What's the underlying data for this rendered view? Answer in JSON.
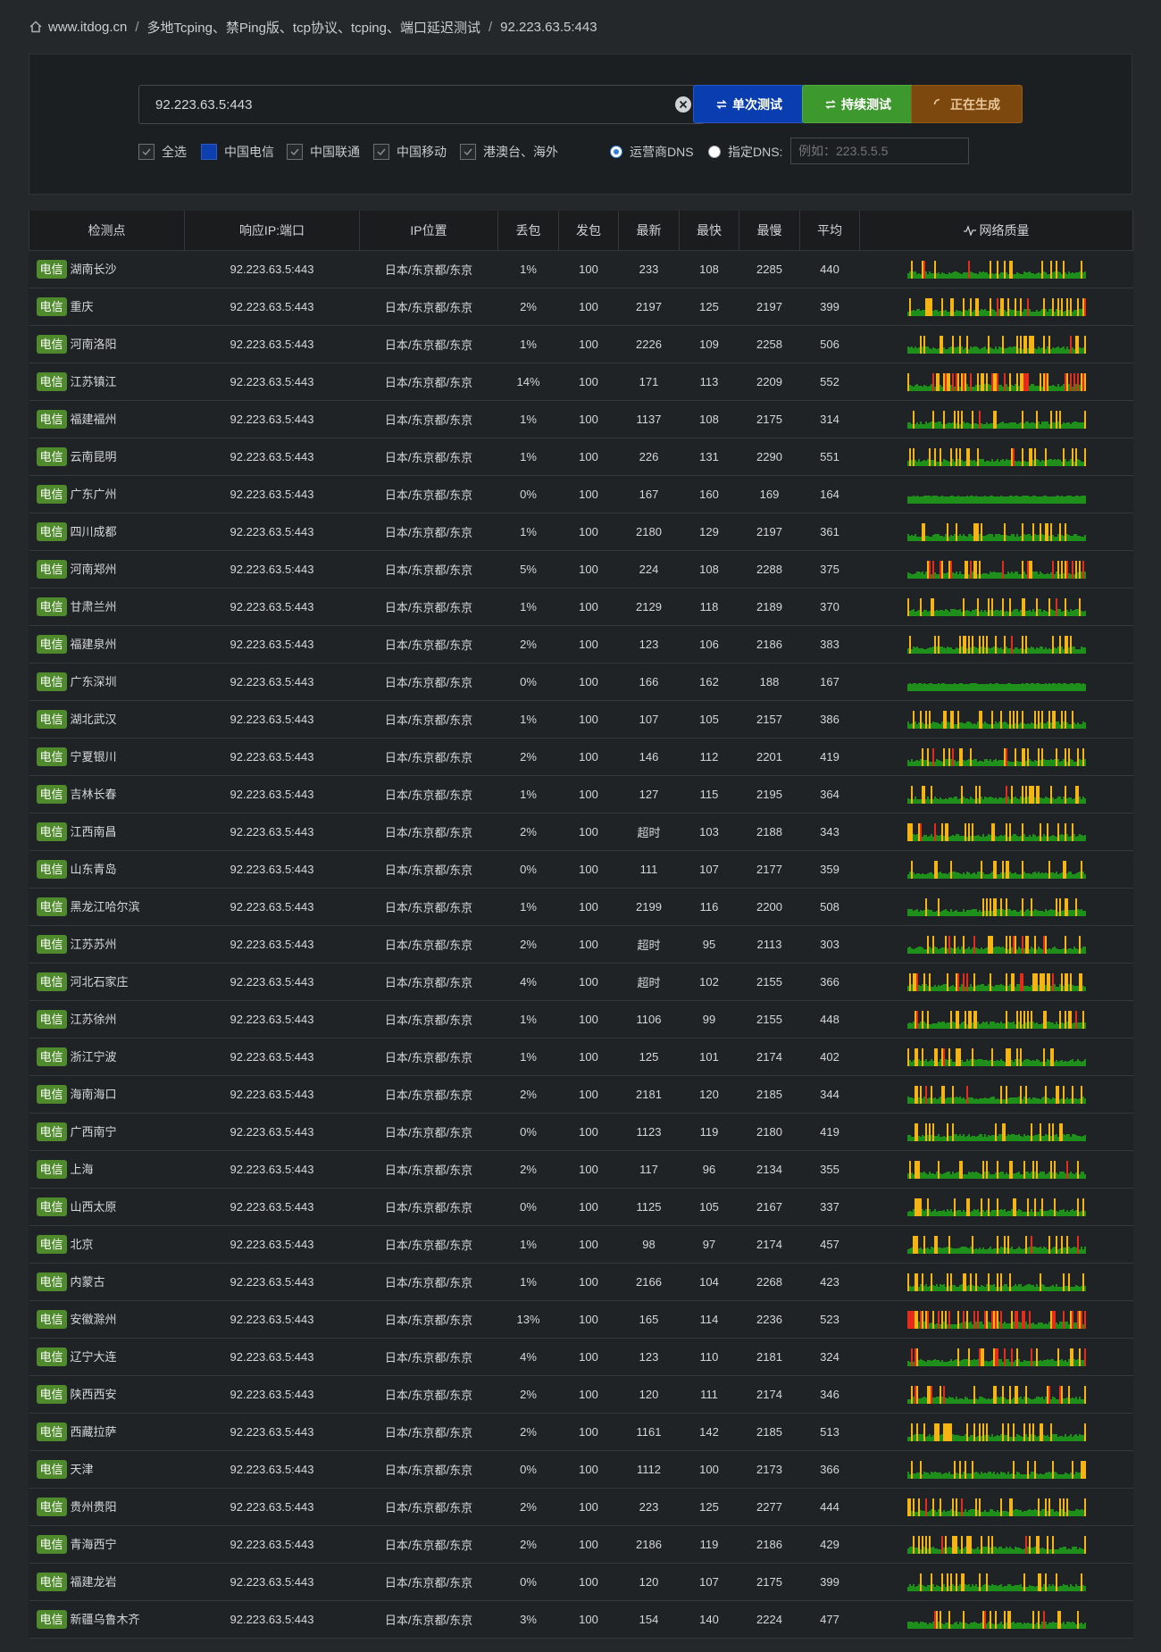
{
  "breadcrumb": {
    "site": "www.itdog.cn",
    "page": "多地Tcping、禁Ping版、tcp协议、tcping、端口延迟测试",
    "current": "92.223.63.5:443"
  },
  "form": {
    "target_value": "92.223.63.5:443",
    "btn_single": "单次测试",
    "btn_continuous": "持续测试",
    "btn_generating": "正在生成",
    "filters": [
      {
        "label": "全选",
        "checked": true
      },
      {
        "label": "中国电信",
        "checked": true
      },
      {
        "label": "中国联通",
        "checked": true
      },
      {
        "label": "中国移动",
        "checked": true
      },
      {
        "label": "港澳台、海外",
        "checked": true
      }
    ],
    "dns_isp": "运营商DNS",
    "dns_custom": "指定DNS:",
    "dns_placeholder": "例如：223.5.5.5"
  },
  "table": {
    "headers": [
      "检测点",
      "响应IP:端口",
      "IP位置",
      "丢包",
      "发包",
      "最新",
      "最快",
      "最慢",
      "平均",
      "网络质量"
    ],
    "isp_badge": "电信",
    "rows": [
      {
        "city": "湖南长沙",
        "ip": "92.223.63.5:443",
        "loc": "日本/东京都/东京",
        "loss": "1%",
        "sent": "100",
        "latest": "233",
        "fast": "108",
        "slow": "2285",
        "avg": "440"
      },
      {
        "city": "重庆",
        "ip": "92.223.63.5:443",
        "loc": "日本/东京都/东京",
        "loss": "2%",
        "sent": "100",
        "latest": "2197",
        "fast": "125",
        "slow": "2197",
        "avg": "399"
      },
      {
        "city": "河南洛阳",
        "ip": "92.223.63.5:443",
        "loc": "日本/东京都/东京",
        "loss": "1%",
        "sent": "100",
        "latest": "2226",
        "fast": "109",
        "slow": "2258",
        "avg": "506"
      },
      {
        "city": "江苏镇江",
        "ip": "92.223.63.5:443",
        "loc": "日本/东京都/东京",
        "loss": "14%",
        "sent": "100",
        "latest": "171",
        "fast": "113",
        "slow": "2209",
        "avg": "552"
      },
      {
        "city": "福建福州",
        "ip": "92.223.63.5:443",
        "loc": "日本/东京都/东京",
        "loss": "1%",
        "sent": "100",
        "latest": "1137",
        "fast": "108",
        "slow": "2175",
        "avg": "314"
      },
      {
        "city": "云南昆明",
        "ip": "92.223.63.5:443",
        "loc": "日本/东京都/东京",
        "loss": "1%",
        "sent": "100",
        "latest": "226",
        "fast": "131",
        "slow": "2290",
        "avg": "551"
      },
      {
        "city": "广东广州",
        "ip": "92.223.63.5:443",
        "loc": "日本/东京都/东京",
        "loss": "0%",
        "sent": "100",
        "latest": "167",
        "fast": "160",
        "slow": "169",
        "avg": "164"
      },
      {
        "city": "四川成都",
        "ip": "92.223.63.5:443",
        "loc": "日本/东京都/东京",
        "loss": "1%",
        "sent": "100",
        "latest": "2180",
        "fast": "129",
        "slow": "2197",
        "avg": "361"
      },
      {
        "city": "河南郑州",
        "ip": "92.223.63.5:443",
        "loc": "日本/东京都/东京",
        "loss": "5%",
        "sent": "100",
        "latest": "224",
        "fast": "108",
        "slow": "2288",
        "avg": "375"
      },
      {
        "city": "甘肃兰州",
        "ip": "92.223.63.5:443",
        "loc": "日本/东京都/东京",
        "loss": "1%",
        "sent": "100",
        "latest": "2129",
        "fast": "118",
        "slow": "2189",
        "avg": "370"
      },
      {
        "city": "福建泉州",
        "ip": "92.223.63.5:443",
        "loc": "日本/东京都/东京",
        "loss": "2%",
        "sent": "100",
        "latest": "123",
        "fast": "106",
        "slow": "2186",
        "avg": "383"
      },
      {
        "city": "广东深圳",
        "ip": "92.223.63.5:443",
        "loc": "日本/东京都/东京",
        "loss": "0%",
        "sent": "100",
        "latest": "166",
        "fast": "162",
        "slow": "188",
        "avg": "167"
      },
      {
        "city": "湖北武汉",
        "ip": "92.223.63.5:443",
        "loc": "日本/东京都/东京",
        "loss": "1%",
        "sent": "100",
        "latest": "107",
        "fast": "105",
        "slow": "2157",
        "avg": "386"
      },
      {
        "city": "宁夏银川",
        "ip": "92.223.63.5:443",
        "loc": "日本/东京都/东京",
        "loss": "2%",
        "sent": "100",
        "latest": "146",
        "fast": "112",
        "slow": "2201",
        "avg": "419"
      },
      {
        "city": "吉林长春",
        "ip": "92.223.63.5:443",
        "loc": "日本/东京都/东京",
        "loss": "1%",
        "sent": "100",
        "latest": "127",
        "fast": "115",
        "slow": "2195",
        "avg": "364"
      },
      {
        "city": "江西南昌",
        "ip": "92.223.63.5:443",
        "loc": "日本/东京都/东京",
        "loss": "2%",
        "sent": "100",
        "latest": "超时",
        "fast": "103",
        "slow": "2188",
        "avg": "343"
      },
      {
        "city": "山东青岛",
        "ip": "92.223.63.5:443",
        "loc": "日本/东京都/东京",
        "loss": "0%",
        "sent": "100",
        "latest": "111",
        "fast": "107",
        "slow": "2177",
        "avg": "359"
      },
      {
        "city": "黑龙江哈尔滨",
        "ip": "92.223.63.5:443",
        "loc": "日本/东京都/东京",
        "loss": "1%",
        "sent": "100",
        "latest": "2199",
        "fast": "116",
        "slow": "2200",
        "avg": "508"
      },
      {
        "city": "江苏苏州",
        "ip": "92.223.63.5:443",
        "loc": "日本/东京都/东京",
        "loss": "2%",
        "sent": "100",
        "latest": "超时",
        "fast": "95",
        "slow": "2113",
        "avg": "303"
      },
      {
        "city": "河北石家庄",
        "ip": "92.223.63.5:443",
        "loc": "日本/东京都/东京",
        "loss": "4%",
        "sent": "100",
        "latest": "超时",
        "fast": "102",
        "slow": "2155",
        "avg": "366"
      },
      {
        "city": "江苏徐州",
        "ip": "92.223.63.5:443",
        "loc": "日本/东京都/东京",
        "loss": "1%",
        "sent": "100",
        "latest": "1106",
        "fast": "99",
        "slow": "2155",
        "avg": "448"
      },
      {
        "city": "浙江宁波",
        "ip": "92.223.63.5:443",
        "loc": "日本/东京都/东京",
        "loss": "1%",
        "sent": "100",
        "latest": "125",
        "fast": "101",
        "slow": "2174",
        "avg": "402"
      },
      {
        "city": "海南海口",
        "ip": "92.223.63.5:443",
        "loc": "日本/东京都/东京",
        "loss": "2%",
        "sent": "100",
        "latest": "2181",
        "fast": "120",
        "slow": "2185",
        "avg": "344"
      },
      {
        "city": "广西南宁",
        "ip": "92.223.63.5:443",
        "loc": "日本/东京都/东京",
        "loss": "0%",
        "sent": "100",
        "latest": "1123",
        "fast": "119",
        "slow": "2180",
        "avg": "419"
      },
      {
        "city": "上海",
        "ip": "92.223.63.5:443",
        "loc": "日本/东京都/东京",
        "loss": "2%",
        "sent": "100",
        "latest": "117",
        "fast": "96",
        "slow": "2134",
        "avg": "355"
      },
      {
        "city": "山西太原",
        "ip": "92.223.63.5:443",
        "loc": "日本/东京都/东京",
        "loss": "0%",
        "sent": "100",
        "latest": "1125",
        "fast": "105",
        "slow": "2167",
        "avg": "337"
      },
      {
        "city": "北京",
        "ip": "92.223.63.5:443",
        "loc": "日本/东京都/东京",
        "loss": "1%",
        "sent": "100",
        "latest": "98",
        "fast": "97",
        "slow": "2174",
        "avg": "457"
      },
      {
        "city": "内蒙古",
        "ip": "92.223.63.5:443",
        "loc": "日本/东京都/东京",
        "loss": "1%",
        "sent": "100",
        "latest": "2166",
        "fast": "104",
        "slow": "2268",
        "avg": "423"
      },
      {
        "city": "安徽滁州",
        "ip": "92.223.63.5:443",
        "loc": "日本/东京都/东京",
        "loss": "13%",
        "sent": "100",
        "latest": "165",
        "fast": "114",
        "slow": "2236",
        "avg": "523"
      },
      {
        "city": "辽宁大连",
        "ip": "92.223.63.5:443",
        "loc": "日本/东京都/东京",
        "loss": "4%",
        "sent": "100",
        "latest": "123",
        "fast": "110",
        "slow": "2181",
        "avg": "324"
      },
      {
        "city": "陕西西安",
        "ip": "92.223.63.5:443",
        "loc": "日本/东京都/东京",
        "loss": "2%",
        "sent": "100",
        "latest": "120",
        "fast": "111",
        "slow": "2174",
        "avg": "346"
      },
      {
        "city": "西藏拉萨",
        "ip": "92.223.63.5:443",
        "loc": "日本/东京都/东京",
        "loss": "2%",
        "sent": "100",
        "latest": "1161",
        "fast": "142",
        "slow": "2185",
        "avg": "513"
      },
      {
        "city": "天津",
        "ip": "92.223.63.5:443",
        "loc": "日本/东京都/东京",
        "loss": "0%",
        "sent": "100",
        "latest": "1112",
        "fast": "100",
        "slow": "2173",
        "avg": "366"
      },
      {
        "city": "贵州贵阳",
        "ip": "92.223.63.5:443",
        "loc": "日本/东京都/东京",
        "loss": "2%",
        "sent": "100",
        "latest": "223",
        "fast": "125",
        "slow": "2277",
        "avg": "444"
      },
      {
        "city": "青海西宁",
        "ip": "92.223.63.5:443",
        "loc": "日本/东京都/东京",
        "loss": "2%",
        "sent": "100",
        "latest": "2186",
        "fast": "119",
        "slow": "2186",
        "avg": "429"
      },
      {
        "city": "福建龙岩",
        "ip": "92.223.63.5:443",
        "loc": "日本/东京都/东京",
        "loss": "0%",
        "sent": "100",
        "latest": "120",
        "fast": "107",
        "slow": "2175",
        "avg": "399"
      },
      {
        "city": "新疆乌鲁木齐",
        "ip": "92.223.63.5:443",
        "loc": "日本/东京都/东京",
        "loss": "3%",
        "sent": "100",
        "latest": "154",
        "fast": "140",
        "slow": "2224",
        "avg": "477"
      }
    ]
  },
  "colors": {
    "good": "#1f8f1b",
    "slow": "#f5b414",
    "lost": "#e52b1a",
    "badge": "#4f8a2d",
    "btn_single": "#0a3eb0",
    "btn_continuous": "#3d982d",
    "btn_generating": "#7d480d"
  }
}
